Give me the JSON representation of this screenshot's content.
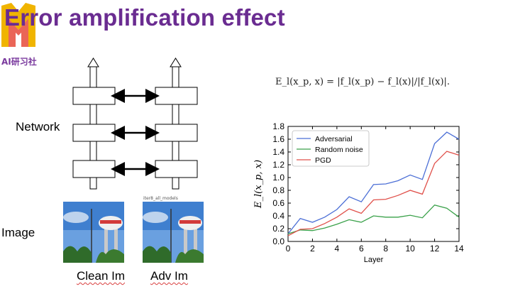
{
  "slide": {
    "title": "Error amplification effect",
    "brand": "AI研习社"
  },
  "diagram": {
    "network_label": "Network",
    "image_label": "Image",
    "clean_caption": "Clean Im",
    "adv_caption": "Adv Im",
    "adv_tiny_label": "iter8_all_models"
  },
  "formula": "E_l(x_p, x) = |f_l(x_p) − f_l(x)|/|f_l(x)|.",
  "colors": {
    "title": "#6a2c91",
    "adversarial": "#4c6fd6",
    "random": "#3aa14a",
    "pgd": "#e0504a"
  },
  "chart_data": {
    "type": "line",
    "xlabel": "Layer",
    "ylabel": "E_l(x_p, x)",
    "xlim": [
      0,
      14
    ],
    "ylim": [
      0.0,
      1.8
    ],
    "xticks": [
      0,
      2,
      4,
      6,
      8,
      10,
      12,
      14
    ],
    "yticks": [
      "0.0",
      "0.2",
      "0.4",
      "0.6",
      "0.8",
      "1.0",
      "1.2",
      "1.4",
      "1.6",
      "1.8"
    ],
    "legend_position": "top-left",
    "x": [
      0,
      1,
      2,
      3,
      4,
      5,
      6,
      7,
      8,
      9,
      10,
      11,
      12,
      13,
      14
    ],
    "series": [
      {
        "name": "Adversarial",
        "color": "#4c6fd6",
        "values": [
          0.12,
          0.36,
          0.3,
          0.38,
          0.5,
          0.7,
          0.62,
          0.89,
          0.9,
          0.95,
          1.04,
          0.97,
          1.53,
          1.71,
          1.6
        ]
      },
      {
        "name": "Random noise",
        "color": "#3aa14a",
        "values": [
          0.12,
          0.18,
          0.17,
          0.21,
          0.27,
          0.34,
          0.3,
          0.4,
          0.38,
          0.38,
          0.41,
          0.37,
          0.57,
          0.52,
          0.38
        ]
      },
      {
        "name": "PGD",
        "color": "#e0504a",
        "values": [
          0.09,
          0.19,
          0.2,
          0.28,
          0.38,
          0.51,
          0.44,
          0.65,
          0.66,
          0.72,
          0.8,
          0.74,
          1.22,
          1.41,
          1.35
        ]
      }
    ]
  }
}
